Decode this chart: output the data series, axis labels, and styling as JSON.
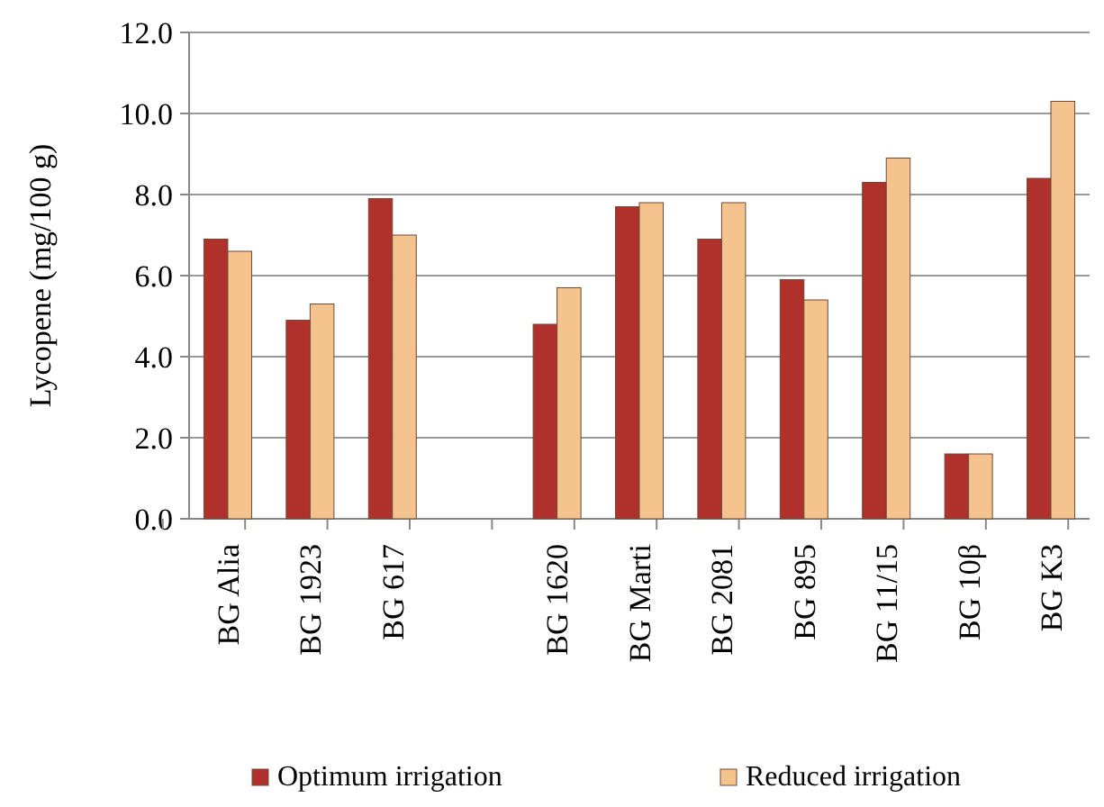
{
  "chart_data": {
    "type": "bar",
    "ylabel": "Lycopene (mg/100 g)",
    "categories": [
      "BG Alia",
      "BG 1923",
      "BG 617",
      null,
      "BG 1620",
      "BG Marti",
      "BG 2081",
      "BG 895",
      "BG 11/15",
      "BG 10β",
      "BG K3"
    ],
    "series": [
      {
        "name": "Optimum irrigation",
        "color": "#b0302c",
        "values": [
          6.9,
          4.9,
          7.9,
          null,
          4.8,
          7.7,
          6.9,
          5.9,
          8.3,
          1.6,
          8.4
        ]
      },
      {
        "name": "Reduced irrigation",
        "color": "#f5c48e",
        "values": [
          6.6,
          5.3,
          7.0,
          null,
          5.7,
          7.8,
          7.8,
          5.4,
          8.9,
          1.6,
          10.3
        ]
      }
    ],
    "ylim": [
      0,
      12
    ],
    "yticks": [
      {
        "value": 0,
        "label": "0.0"
      },
      {
        "value": 2,
        "label": "2.0"
      },
      {
        "value": 4,
        "label": "4.0"
      },
      {
        "value": 6,
        "label": "6.0"
      },
      {
        "value": 8,
        "label": "8.0"
      },
      {
        "value": 10,
        "label": "10.0"
      },
      {
        "value": 12,
        "label": "12.0"
      }
    ],
    "grid": "y",
    "legend": "bottom"
  }
}
